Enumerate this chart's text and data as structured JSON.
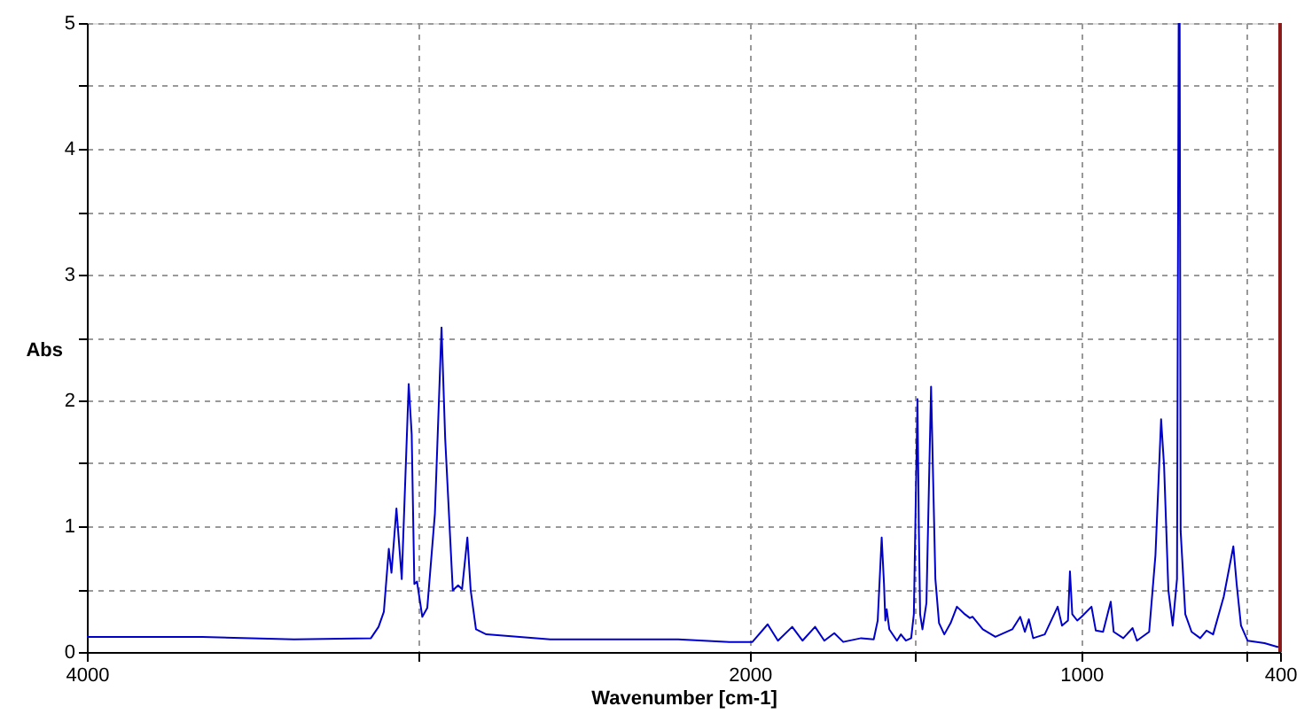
{
  "chart_data": {
    "type": "line",
    "xlabel": "Wavenumber [cm-1]",
    "ylabel": "Abs",
    "x": [
      4000,
      3652,
      3375,
      3143,
      3120,
      3104,
      3089,
      3081,
      3066,
      3050,
      3029,
      3020,
      3012,
      3004,
      2988,
      2973,
      2950,
      2930,
      2919,
      2896,
      2880,
      2868,
      2852,
      2842,
      2826,
      2795,
      2602,
      2370,
      2216,
      2062,
      2000,
      1992,
      1946,
      1915,
      1872,
      1841,
      1803,
      1775,
      1745,
      1718,
      1664,
      1626,
      1614,
      1602,
      1595,
      1591,
      1587,
      1579,
      1556,
      1544,
      1529,
      1513,
      1505,
      1494,
      1490,
      1486,
      1479,
      1467,
      1453,
      1448,
      1440,
      1429,
      1413,
      1394,
      1375,
      1351,
      1336,
      1328,
      1297,
      1259,
      1208,
      1184,
      1170,
      1158,
      1145,
      1110,
      1071,
      1058,
      1040,
      1034,
      1027,
      1012,
      999,
      969,
      956,
      934,
      911,
      902,
      873,
      845,
      832,
      795,
      776,
      759,
      750,
      737,
      724,
      711,
      706,
      703,
      700,
      686,
      667,
      641,
      622,
      602,
      570,
      541,
      531,
      518,
      498,
      447,
      408,
      400
    ],
    "series": [
      {
        "color": "#0000cc",
        "values": [
          0.12,
          0.12,
          0.1,
          0.11,
          0.2,
          0.32,
          0.82,
          0.63,
          1.14,
          0.58,
          2.13,
          1.73,
          0.54,
          0.56,
          0.28,
          0.35,
          1.1,
          2.58,
          1.7,
          0.49,
          0.53,
          0.5,
          0.91,
          0.49,
          0.18,
          0.14,
          0.1,
          0.1,
          0.1,
          0.08,
          0.08,
          0.08,
          0.22,
          0.09,
          0.2,
          0.09,
          0.2,
          0.09,
          0.15,
          0.08,
          0.11,
          0.1,
          0.25,
          0.91,
          0.54,
          0.25,
          0.34,
          0.18,
          0.09,
          0.14,
          0.09,
          0.11,
          0.3,
          2.01,
          1.0,
          0.3,
          0.18,
          0.39,
          2.11,
          1.52,
          0.58,
          0.23,
          0.14,
          0.23,
          0.36,
          0.3,
          0.27,
          0.28,
          0.18,
          0.12,
          0.18,
          0.28,
          0.16,
          0.26,
          0.11,
          0.14,
          0.36,
          0.21,
          0.25,
          0.64,
          0.3,
          0.25,
          0.28,
          0.36,
          0.17,
          0.16,
          0.4,
          0.16,
          0.11,
          0.19,
          0.09,
          0.16,
          0.77,
          1.85,
          1.48,
          0.49,
          0.21,
          0.58,
          5.0,
          5.0,
          0.96,
          0.3,
          0.16,
          0.11,
          0.17,
          0.14,
          0.44,
          0.84,
          0.54,
          0.21,
          0.09,
          0.07,
          0.04,
          0.04
        ]
      }
    ],
    "xlim": [
      4000,
      400
    ],
    "xticks": [
      4000,
      {
        "value": 3000,
        "label": null
      },
      2000,
      {
        "value": 1500,
        "label": null
      },
      1000,
      {
        "value": 500,
        "label": null
      },
      400
    ],
    "ylim": [
      0,
      5
    ],
    "yticks": [
      0,
      {
        "value": 0.5,
        "label": null
      },
      1,
      {
        "value": 1.5,
        "label": null
      },
      2,
      {
        "value": 2.5,
        "label": null
      },
      3,
      {
        "value": 3.5,
        "label": null
      },
      4,
      {
        "value": 4.5,
        "label": null
      },
      5
    ],
    "grid": true,
    "marker": "none",
    "line_style": "solid",
    "ref_lines": [
      {
        "axis": "x",
        "value": 400,
        "color": "#8b1a1a",
        "line_style": "solid"
      }
    ]
  }
}
